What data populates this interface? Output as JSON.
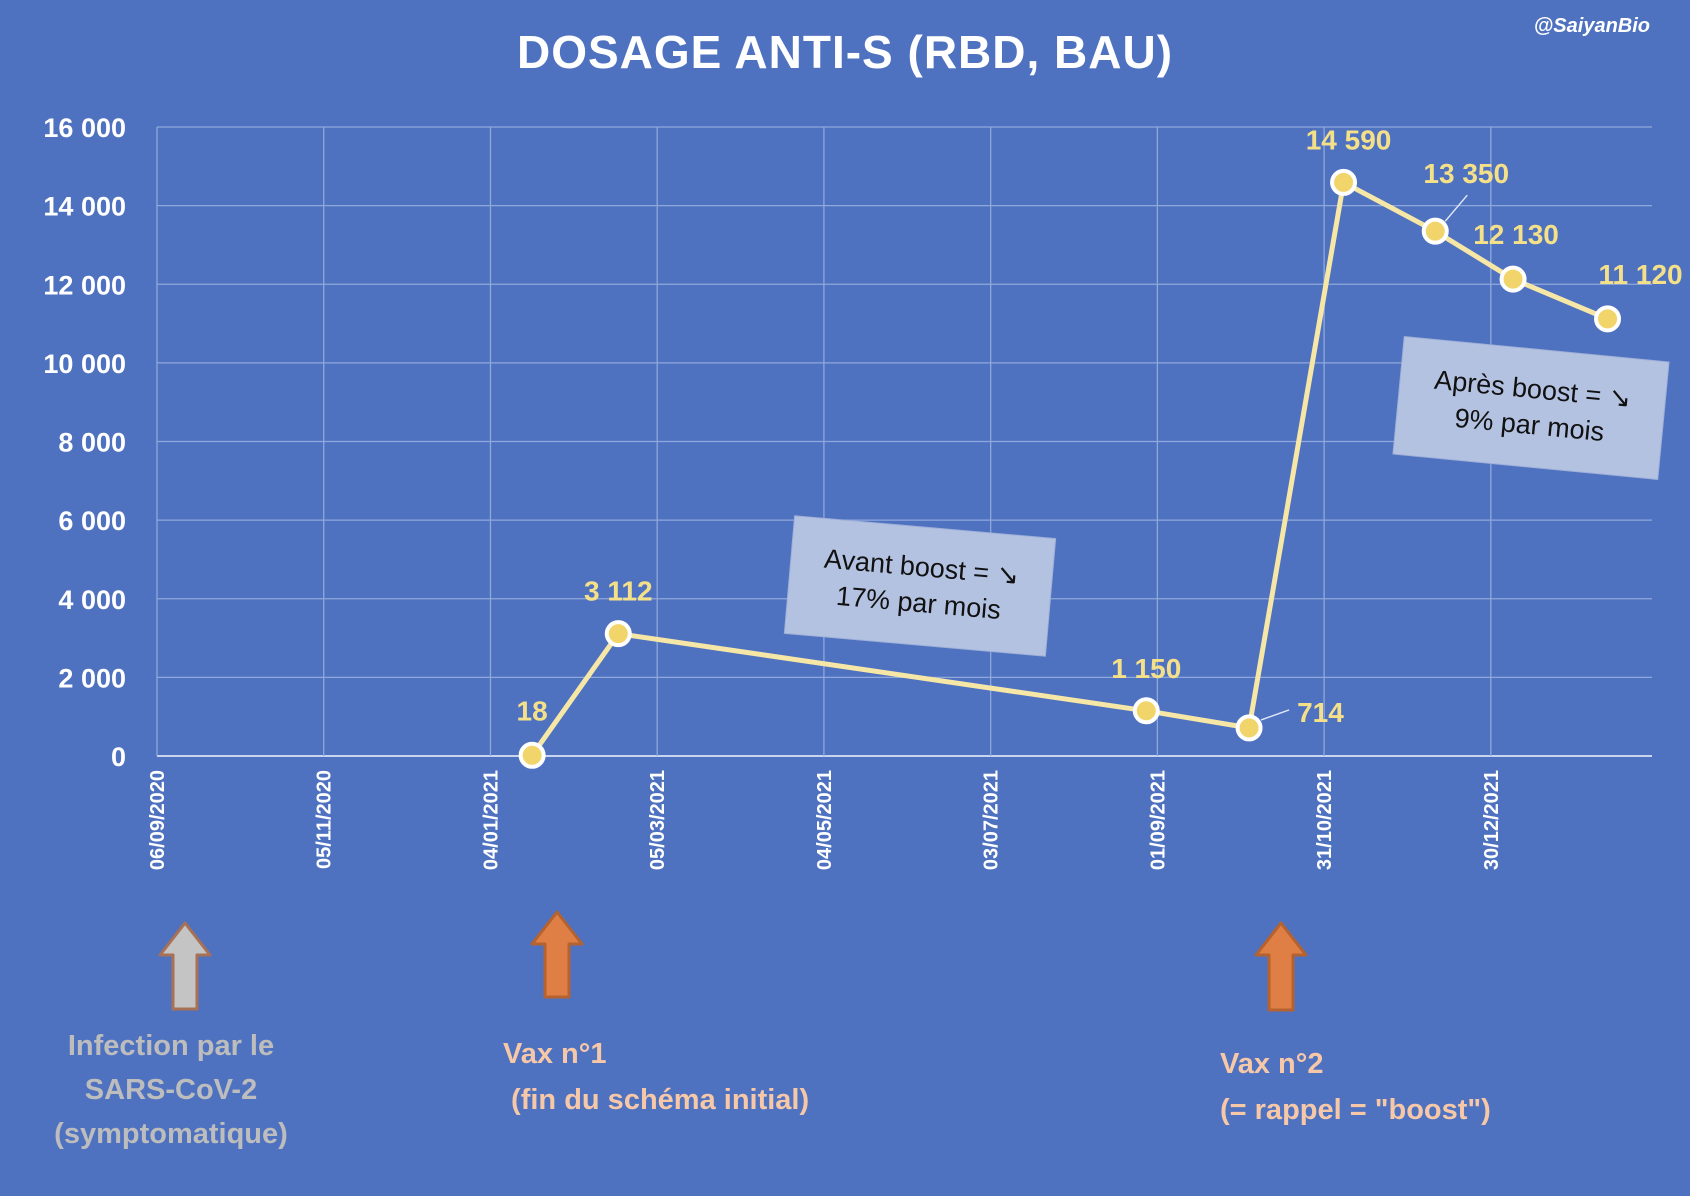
{
  "handle": "@SaiyanBio",
  "colors": {
    "background": "#4f72c0",
    "grid": "#8fa8db",
    "line": "#f6e7a6",
    "marker_fill": "#f2d56a",
    "marker_stroke": "#ffffff",
    "label": "#f5e08a",
    "annotation_bg": "#b4c2e2",
    "arrow_orange": "#e07f45",
    "arrow_orange_stroke": "#b4622f",
    "arrow_grey": "#c4c4c4",
    "arrow_grey_stroke": "#a87054",
    "infection_text": "#bdbdbd",
    "vax_text": "#f7c8a8"
  },
  "chart_data": {
    "type": "line",
    "title": "DOSAGE ANTI-S (RBD, BAU)",
    "xlabel": "",
    "ylabel": "",
    "xlim": [
      "2020-09-06",
      "2022-02-26"
    ],
    "ylim": [
      0,
      16000
    ],
    "yticks": [
      0,
      2000,
      4000,
      6000,
      8000,
      10000,
      12000,
      14000,
      16000
    ],
    "ytick_labels": [
      "0",
      "2 000",
      "4 000",
      "6 000",
      "8 000",
      "10 000",
      "12 000",
      "14 000",
      "16 000"
    ],
    "xticks": [
      "2020-09-06",
      "2020-11-05",
      "2021-01-04",
      "2021-03-05",
      "2021-05-04",
      "2021-07-03",
      "2021-09-01",
      "2021-10-31",
      "2021-12-30"
    ],
    "xtick_labels": [
      "06/09/2020",
      "05/11/2020",
      "04/01/2021",
      "05/03/2021",
      "04/05/2021",
      "03/07/2021",
      "01/09/2021",
      "31/10/2021",
      "30/12/2021"
    ],
    "grid": true,
    "series": [
      {
        "points": [
          {
            "x": "2021-01-19",
            "y": 18,
            "label": "18"
          },
          {
            "x": "2021-02-19",
            "y": 3112,
            "label": "3 112"
          },
          {
            "x": "2021-08-28",
            "y": 1150,
            "label": "1 150"
          },
          {
            "x": "2021-10-04",
            "y": 714,
            "label": "714"
          },
          {
            "x": "2021-11-07",
            "y": 14590,
            "label": "14 590"
          },
          {
            "x": "2021-12-10",
            "y": 13350,
            "label": "13 350"
          },
          {
            "x": "2022-01-07",
            "y": 12130,
            "label": "12 130"
          },
          {
            "x": "2022-02-10",
            "y": 11120,
            "label": "11 120"
          }
        ]
      }
    ],
    "annotations": [
      {
        "line1": "Avant boost = ↘",
        "line2": "17% par mois"
      },
      {
        "line1": "Après boost = ↘",
        "line2": "9% par mois"
      }
    ],
    "events": [
      {
        "x": "2020-09-06",
        "arrow": "grey",
        "lines": [
          "Infection par le",
          "SARS-CoV-2",
          "(symptomatique)"
        ]
      },
      {
        "x": "2021-01-19",
        "arrow": "orange",
        "lines": [
          "Vax n°1",
          " (fin du schéma initial)"
        ]
      },
      {
        "x": "2021-10-04",
        "arrow": "orange",
        "lines": [
          "Vax n°2",
          "(= rappel = \"boost\")"
        ]
      }
    ]
  }
}
